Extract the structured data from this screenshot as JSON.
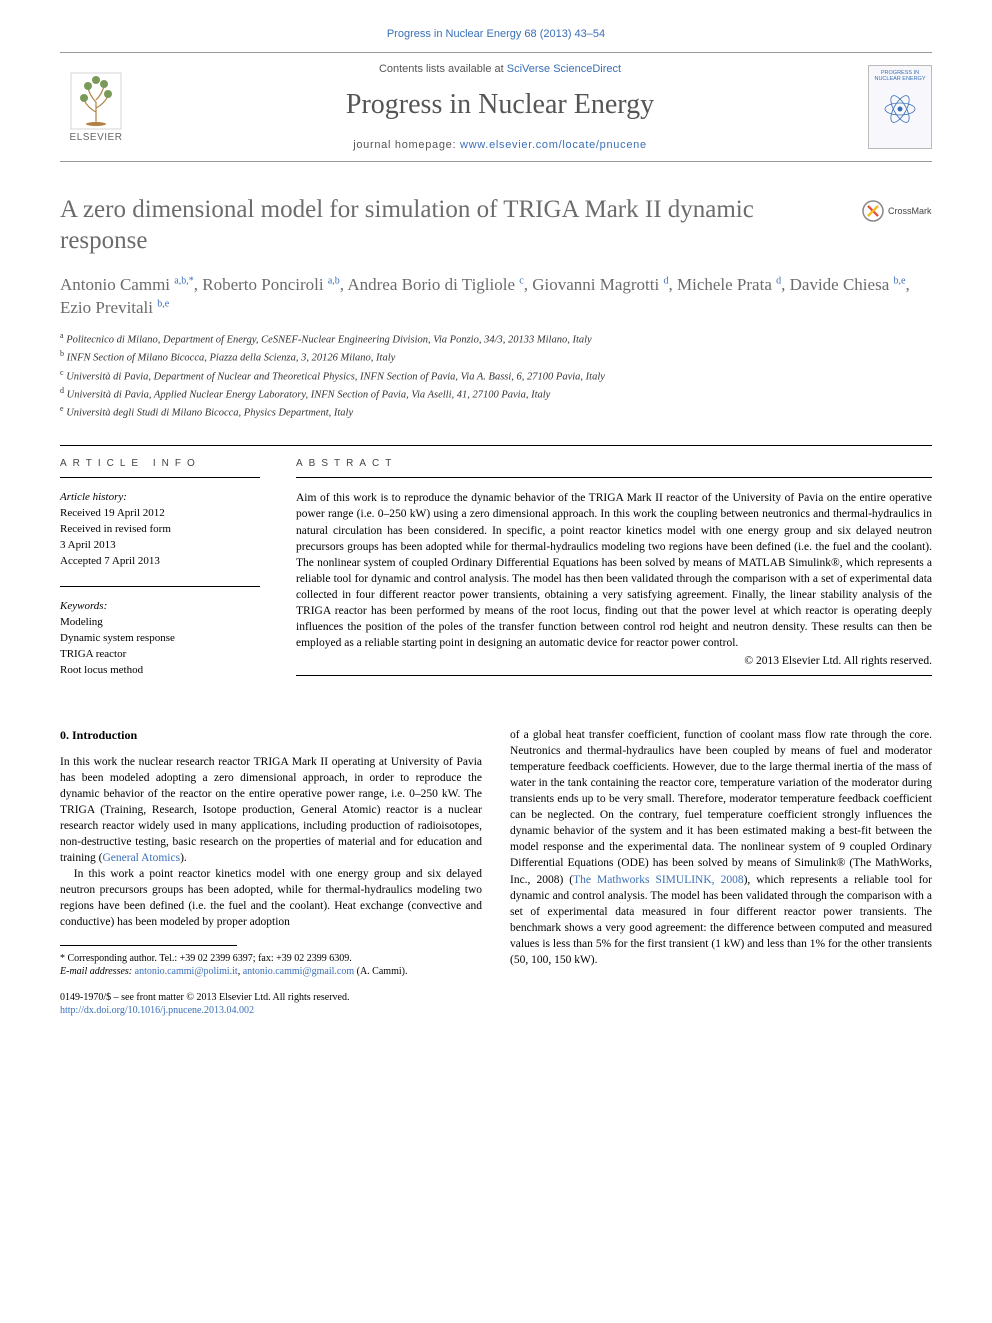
{
  "header": {
    "citation": "Progress in Nuclear Energy 68 (2013) 43–54",
    "publisher_label": "ELSEVIER",
    "contents_text": "Contents lists available at ",
    "contents_link": "SciVerse ScienceDirect",
    "journal_title": "Progress in Nuclear Energy",
    "homepage_label": "journal homepage: ",
    "homepage_url": "www.elsevier.com/locate/pnucene",
    "thumb_title": "PROGRESS IN NUCLEAR ENERGY"
  },
  "article": {
    "title": "A zero dimensional model for simulation of TRIGA Mark II dynamic response",
    "crossmark_label": "CrossMark",
    "authors_html": "Antonio Cammi <sup>a,b,*</sup>, Roberto Ponciroli <sup>a,b</sup>, Andrea Borio di Tigliole <sup>c</sup>, Giovanni Magrotti <sup>d</sup>, Michele Prata <sup>d</sup>, Davide Chiesa <sup>b,e</sup>, Ezio Previtali <sup>b,e</sup>",
    "affiliations": [
      "Politecnico di Milano, Department of Energy, CeSNEF-Nuclear Engineering Division, Via Ponzio, 34/3, 20133 Milano, Italy",
      "INFN Section of Milano Bicocca, Piazza della Scienza, 3, 20126 Milano, Italy",
      "Università di Pavia, Department of Nuclear and Theoretical Physics, INFN Section of Pavia, Via A. Bassi, 6, 27100 Pavia, Italy",
      "Università di Pavia, Applied Nuclear Energy Laboratory, INFN Section of Pavia, Via Aselli, 41, 27100 Pavia, Italy",
      "Università degli Studi di Milano Bicocca, Physics Department, Italy"
    ],
    "aff_marks": [
      "a",
      "b",
      "c",
      "d",
      "e"
    ]
  },
  "info": {
    "section_label": "ARTICLE INFO",
    "history_heading": "Article history:",
    "history_lines": [
      "Received 19 April 2012",
      "Received in revised form",
      "3 April 2013",
      "Accepted 7 April 2013"
    ],
    "keywords_heading": "Keywords:",
    "keywords": [
      "Modeling",
      "Dynamic system response",
      "TRIGA reactor",
      "Root locus method"
    ]
  },
  "abstract": {
    "section_label": "ABSTRACT",
    "body": "Aim of this work is to reproduce the dynamic behavior of the TRIGA Mark II reactor of the University of Pavia on the entire operative power range (i.e. 0–250 kW) using a zero dimensional approach. In this work the coupling between neutronics and thermal-hydraulics in natural circulation has been considered. In specific, a point reactor kinetics model with one energy group and six delayed neutron precursors groups has been adopted while for thermal-hydraulics modeling two regions have been defined (i.e. the fuel and the coolant). The nonlinear system of coupled Ordinary Differential Equations has been solved by means of MATLAB Simulink®, which represents a reliable tool for dynamic and control analysis. The model has then been validated through the comparison with a set of experimental data collected in four different reactor power transients, obtaining a very satisfying agreement. Finally, the linear stability analysis of the TRIGA reactor has been performed by means of the root locus, finding out that the power level at which reactor is operating deeply influences the position of the poles of the transfer function between control rod height and neutron density. These results can then be employed as a reliable starting point in designing an automatic device for reactor power control.",
    "copyright": "© 2013 Elsevier Ltd. All rights reserved."
  },
  "body": {
    "intro_heading": "0. Introduction",
    "col1_p1": "In this work the nuclear research reactor TRIGA Mark II operating at University of Pavia has been modeled adopting a zero dimensional approach, in order to reproduce the dynamic behavior of the reactor on the entire operative power range, i.e. 0–250 kW. The TRIGA (Training, Research, Isotope production, General Atomic) reactor is a nuclear research reactor widely used in many applications, including production of radioisotopes, non-destructive testing, basic research on the properties of material and for education and training (",
    "col1_p1_link": "General Atomics",
    "col1_p1_tail": ").",
    "col1_p2": "In this work a point reactor kinetics model with one energy group and six delayed neutron precursors groups has been adopted, while for thermal-hydraulics modeling two regions have been defined (i.e. the fuel and the coolant). Heat exchange (convective and conductive) has been modeled by proper adoption",
    "col2_p1_a": "of a global heat transfer coefficient, function of coolant mass flow rate through the core. Neutronics and thermal-hydraulics have been coupled by means of fuel and moderator temperature feedback coefficients. However, due to the large thermal inertia of the mass of water in the tank containing the reactor core, temperature variation of the moderator during transients ends up to be very small. Therefore, moderator temperature feedback coefficient can be neglected. On the contrary, fuel temperature coefficient strongly influences the dynamic behavior of the system and it has been estimated making a best-fit between the model response and the experimental data. The nonlinear system of 9 coupled Ordinary Differential Equations (ODE) has been solved by means of Simulink® (The MathWorks, Inc., 2008) (",
    "col2_p1_link": "The Mathworks SIMULINK, 2008",
    "col2_p1_b": "), which represents a reliable tool for dynamic and control analysis. The model has been validated through the comparison with a set of experimental data measured in four different reactor power transients. The benchmark shows a very good agreement: the difference between computed and measured values is less than 5% for the first transient (1 kW) and less than 1% for the other transients (50, 100, 150 kW)."
  },
  "footnotes": {
    "corresponding": "* Corresponding author. Tel.: +39 02 2399 6397; fax: +39 02 2399 6309.",
    "email_label": "E-mail addresses: ",
    "email1": "antonio.cammi@polimi.it",
    "email_sep": ", ",
    "email2": "antonio.cammi@gmail.com",
    "email_tail": " (A. Cammi).",
    "copyright_line": "0149-1970/$ – see front matter © 2013 Elsevier Ltd. All rights reserved.",
    "doi": "http://dx.doi.org/10.1016/j.pnucene.2013.04.002"
  },
  "colors": {
    "link": "#3a6fb7",
    "heading_gray": "#6c6c6c",
    "text": "#000000",
    "rule": "#000000"
  }
}
